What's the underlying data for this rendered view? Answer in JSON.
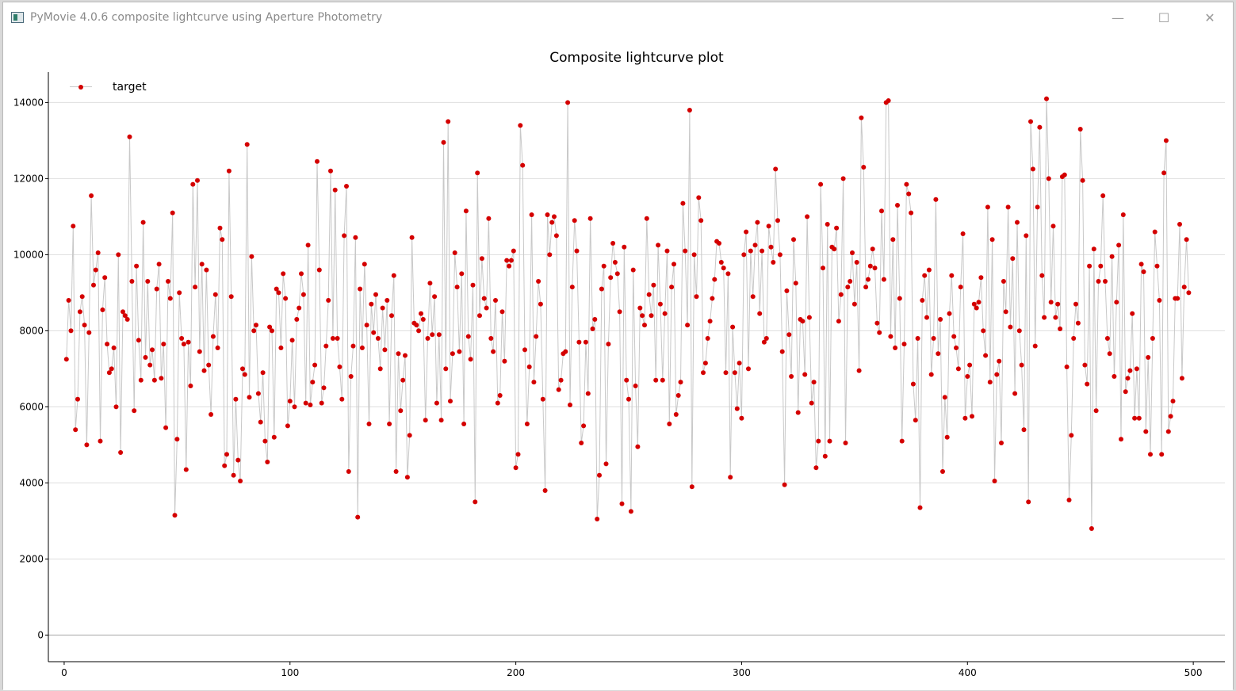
{
  "window": {
    "title": "PyMovie 4.0.6 composite lightcurve using Aperture Photometry",
    "controls": {
      "minimize": "—",
      "maximize": "☐",
      "close": "✕"
    }
  },
  "colors": {
    "marker": "#d40000",
    "line": "#c8c8c8",
    "grid": "#dedede",
    "axis": "#000000"
  },
  "chart_data": {
    "type": "line",
    "title": "Composite lightcurve plot",
    "xlabel": "",
    "ylabel": "",
    "xlim": [
      -7,
      514
    ],
    "ylim": [
      -700,
      14800
    ],
    "xticks": [
      0,
      100,
      200,
      300,
      400,
      500
    ],
    "yticks": [
      0,
      2000,
      4000,
      6000,
      8000,
      10000,
      12000,
      14000
    ],
    "grid": "horizontal",
    "legend_position": "top-left",
    "series": [
      {
        "name": "target",
        "x_start": 1,
        "values": [
          7250,
          8800,
          8000,
          10750,
          5400,
          6200,
          8500,
          8900,
          8150,
          5000,
          7950,
          11550,
          9200,
          9600,
          10050,
          5100,
          8550,
          9400,
          7650,
          6900,
          7000,
          7550,
          6000,
          10000,
          4800,
          8500,
          8400,
          8300,
          13100,
          9300,
          5900,
          9700,
          7750,
          6700,
          10850,
          7300,
          9300,
          7100,
          7500,
          6700,
          9100,
          9750,
          6750,
          7650,
          5450,
          9300,
          8850,
          11100,
          3150,
          5150,
          9000,
          7800,
          7650,
          4350,
          7700,
          6550,
          11850,
          9150,
          11950,
          7450,
          9750,
          6950,
          9600,
          7100,
          5800,
          7850,
          8950,
          7550,
          10700,
          10400,
          4450,
          4750,
          12200,
          8900,
          4200,
          6200,
          4600,
          4050,
          7000,
          6850,
          12900,
          6250,
          9950,
          8000,
          8150,
          6350,
          5600,
          6900,
          5100,
          4550,
          8100,
          8000,
          5200,
          9100,
          9000,
          7550,
          9500,
          8850,
          5500,
          6150,
          7750,
          6000,
          8300,
          8600,
          9500,
          8950,
          6100,
          10250,
          6050,
          6650,
          7100,
          12450,
          9600,
          6100,
          6500,
          7600,
          8800,
          12200,
          7800,
          11700,
          7800,
          7050,
          6200,
          10500,
          11800,
          4300,
          6800,
          7600,
          10450,
          3100,
          9100,
          7550,
          9750,
          8150,
          5550,
          8700,
          7950,
          8950,
          7800,
          7000,
          8600,
          7500,
          8800,
          5550,
          8400,
          9450,
          4300,
          7400,
          5900,
          6700,
          7350,
          4150,
          5250,
          10450,
          8200,
          8150,
          8000,
          8450,
          8300,
          5650,
          7800,
          9250,
          7900,
          8900,
          6100,
          7900,
          5650,
          12950,
          7000,
          13500,
          6150,
          7400,
          10050,
          9150,
          7450,
          9500,
          5550,
          11150,
          7850,
          7250,
          9200,
          3500,
          12150,
          8400,
          9900,
          8850,
          8600,
          10950,
          7800,
          7450,
          8800,
          6100,
          6300,
          8500,
          7200,
          9850,
          9700,
          9850,
          10100,
          4400,
          4750,
          13400,
          12350,
          7500,
          5550,
          7050,
          11050,
          6650,
          7850,
          9300,
          8700,
          6200,
          3800,
          11050,
          10000,
          10850,
          11000,
          10500,
          6450,
          6700,
          7400,
          7450,
          14000,
          6050,
          9150,
          10900,
          10100,
          7700,
          5050,
          5500,
          7700,
          6350,
          10950,
          8050,
          8300,
          3050,
          4200,
          9100,
          9700,
          4500,
          7650,
          9400,
          10300,
          9800,
          9500,
          8500,
          3450,
          10200,
          6700,
          6200,
          3250,
          9600,
          6550,
          4950,
          8600,
          8400,
          8150,
          10950,
          8950,
          8400,
          9200,
          6700,
          10250,
          8700,
          6700,
          8450,
          10100,
          5550,
          9150,
          9750,
          5800,
          6300,
          6650,
          11350,
          10100,
          8150,
          13800,
          3900,
          10000,
          8900,
          11500,
          10900,
          6900,
          7150,
          7800,
          8250,
          8850,
          9350,
          10350,
          10300,
          9800,
          9650,
          6900,
          9500,
          4150,
          8100,
          6900,
          5950,
          7150,
          5700,
          10000,
          10600,
          7000,
          10100,
          8900,
          10250,
          10850,
          8450,
          10100,
          7700,
          7800,
          10750,
          10200,
          9800,
          12250,
          10900,
          10000,
          7450,
          3950,
          9050,
          7900,
          6800,
          10400,
          9250,
          5850,
          8300,
          8250,
          6850,
          11000,
          8350,
          6100,
          6650,
          4400,
          5100,
          11850,
          9650,
          4700,
          10800,
          5100,
          10200,
          10150,
          10700,
          8250,
          8950,
          12000,
          5050,
          9150,
          9300,
          10050,
          8700,
          9800,
          6950,
          13600,
          12300,
          9150,
          9350,
          9700,
          10150,
          9650,
          8200,
          7950,
          11150,
          9350,
          14000,
          14050,
          7850,
          10400,
          7550,
          11300,
          8850,
          5100,
          7650,
          11850,
          11600,
          11100,
          6600,
          5650,
          7800,
          3350,
          8800,
          9450,
          8350,
          9600,
          6850,
          7800,
          11450,
          7400,
          8300,
          4300,
          6250,
          5200,
          8450,
          9450,
          7850,
          7550,
          7000,
          9150,
          10550,
          5700,
          6800,
          7100,
          5750,
          8700,
          8600,
          8750,
          9400,
          8000,
          7350,
          11250,
          6650,
          10400,
          4050,
          6850,
          7200,
          5050,
          9300,
          8500,
          11250,
          8100,
          9900,
          6350,
          10850,
          8000,
          7100,
          5400,
          10500,
          3500,
          13500,
          12250,
          7600,
          11250,
          13350,
          9450,
          8350,
          14100,
          12000,
          8750,
          10750,
          8350,
          8700,
          8050,
          12050,
          12100,
          7050,
          3550,
          5250,
          7800,
          8700,
          8200,
          13300,
          11950,
          7100,
          6600,
          9700,
          2800,
          10150,
          5900,
          9300,
          9700,
          11550,
          9300,
          7800,
          7400,
          9950,
          6800,
          8750,
          10250,
          5150,
          11050,
          6400,
          6750,
          6950,
          8450,
          5700,
          7000,
          5700,
          9750,
          9550,
          5350,
          7300,
          4750,
          7800,
          10600,
          9700,
          8800,
          4750,
          12150,
          13000,
          5350,
          5750,
          6150,
          8850,
          8850,
          10800,
          6750,
          9150,
          10400,
          9000
        ]
      }
    ]
  }
}
